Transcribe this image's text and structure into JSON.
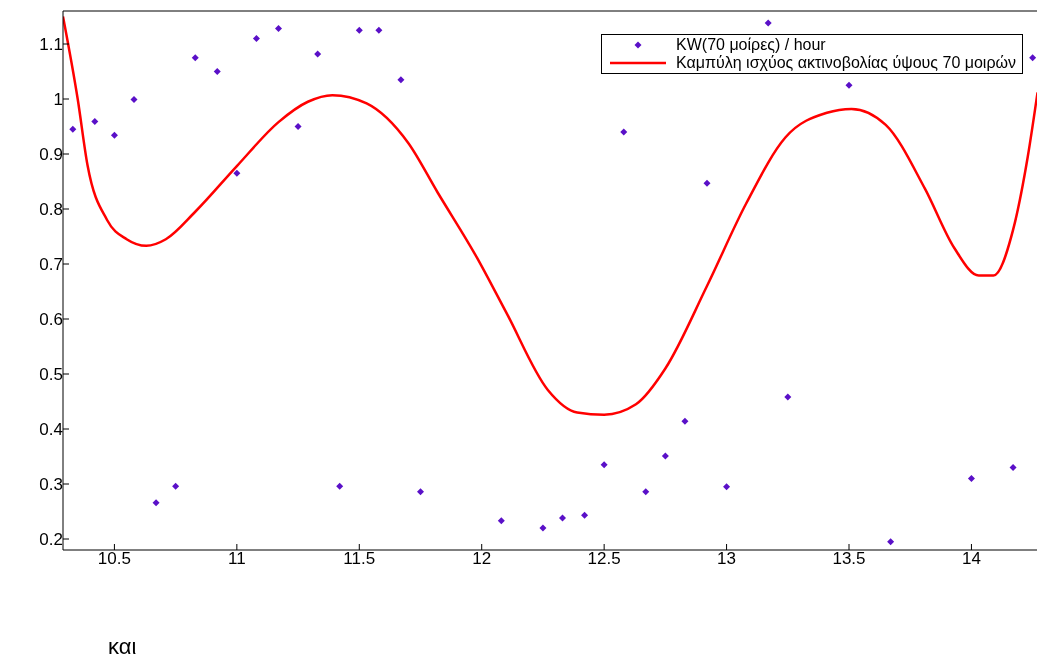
{
  "chart_data": {
    "type": "scatter",
    "xlim": [
      10.29,
      14.28
    ],
    "ylim": [
      0.18,
      1.16
    ],
    "xticks": [
      10.5,
      11,
      11.5,
      12,
      12.5,
      13,
      13.5,
      14
    ],
    "yticks": [
      0.2,
      0.3,
      0.4,
      0.5,
      0.6,
      0.7,
      0.8,
      0.9,
      1,
      1.1
    ],
    "legend": "top right",
    "annotations": [
      "και"
    ],
    "series": [
      {
        "name": "KW(70 μοίρες) / hour",
        "type": "scatter",
        "marker": "diamond",
        "color": "#5a10c8",
        "x": [
          10.33,
          10.42,
          10.5,
          10.58,
          10.67,
          10.75,
          10.83,
          10.92,
          11.0,
          11.08,
          11.17,
          11.25,
          11.33,
          11.42,
          11.5,
          11.58,
          11.67,
          11.75,
          12.08,
          12.25,
          12.33,
          12.42,
          12.5,
          12.58,
          12.67,
          12.75,
          12.83,
          12.92,
          13.0,
          13.17,
          13.25,
          13.5,
          13.67,
          14.0,
          14.17,
          14.25
        ],
        "values": [
          0.945,
          0.959,
          0.934,
          0.999,
          0.266,
          0.296,
          1.075,
          1.05,
          0.865,
          1.11,
          1.128,
          0.95,
          1.082,
          0.296,
          1.125,
          1.125,
          1.035,
          0.286,
          0.233,
          0.22,
          0.238,
          0.243,
          0.335,
          0.94,
          0.286,
          0.351,
          0.414,
          0.847,
          0.295,
          1.138,
          0.458,
          1.025,
          0.195,
          0.31,
          0.33,
          1.075
        ]
      },
      {
        "name": "Καμπύλη ισχύος ακτινοβολίας ύψους 70 μοιρών",
        "type": "line",
        "marker": "none",
        "color": "#ff0000",
        "x": [
          10.29,
          10.35,
          10.39,
          10.47,
          10.55,
          10.63,
          10.71,
          10.83,
          11.0,
          11.17,
          11.29,
          11.39,
          11.53,
          11.7,
          11.82,
          11.98,
          12.1,
          12.27,
          12.39,
          12.5,
          12.63,
          12.75,
          12.92,
          13.08,
          13.24,
          13.41,
          13.51,
          13.65,
          13.81,
          13.93,
          14.03,
          14.09,
          14.17,
          14.23,
          14.27
        ],
        "values": [
          1.15,
          1.0,
          0.88,
          0.78,
          0.745,
          0.733,
          0.745,
          0.795,
          0.878,
          0.958,
          0.995,
          1.007,
          0.992,
          0.92,
          0.83,
          0.712,
          0.612,
          0.471,
          0.43,
          0.426,
          0.445,
          0.51,
          0.66,
          0.81,
          0.93,
          0.975,
          0.982,
          0.953,
          0.837,
          0.729,
          0.679,
          0.679,
          0.762,
          0.895,
          1.012
        ]
      }
    ]
  }
}
